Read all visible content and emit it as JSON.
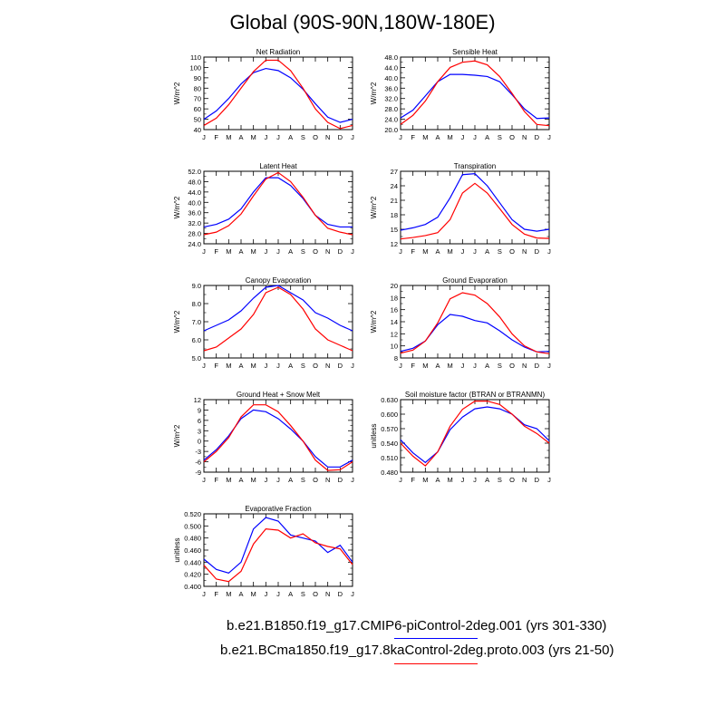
{
  "title": "Global (90S-90N,180W-180E)",
  "chart_data": [
    {
      "type": "line",
      "title": "Net Radiation",
      "ylabel": "W/m^2",
      "categories": [
        "J",
        "F",
        "M",
        "A",
        "M",
        "J",
        "J",
        "A",
        "S",
        "O",
        "N",
        "D",
        "J"
      ],
      "ylim": [
        40,
        110
      ],
      "yticks": [
        40,
        50,
        60,
        70,
        80,
        90,
        100,
        110
      ],
      "ytick_labels": [
        "40",
        "50",
        "60",
        "70",
        "80",
        "90",
        "100",
        "110"
      ],
      "series": [
        {
          "color": "#0000ff",
          "values": [
            50,
            58,
            70,
            84,
            95,
            99,
            97,
            90,
            79,
            65,
            52,
            47,
            50
          ]
        },
        {
          "color": "#ff0000",
          "values": [
            44,
            51,
            64,
            80,
            96,
            107,
            107,
            97,
            80,
            60,
            47,
            41,
            44
          ]
        }
      ]
    },
    {
      "type": "line",
      "title": "Sensible Heat",
      "ylabel": "W/m^2",
      "categories": [
        "J",
        "F",
        "M",
        "A",
        "M",
        "J",
        "J",
        "A",
        "S",
        "O",
        "N",
        "D",
        "J"
      ],
      "ylim": [
        20,
        48
      ],
      "yticks": [
        20,
        24,
        28,
        32,
        36,
        40,
        44,
        48
      ],
      "ytick_labels": [
        "20.0",
        "24.0",
        "28.0",
        "32.0",
        "36.0",
        "40.0",
        "44.0",
        "48.0"
      ],
      "series": [
        {
          "color": "#0000ff",
          "values": [
            24.5,
            27.5,
            33,
            38.5,
            41.3,
            41.3,
            41,
            40.5,
            38.5,
            33.5,
            28,
            24.3,
            24.5
          ]
        },
        {
          "color": "#ff0000",
          "values": [
            22,
            25.5,
            31,
            38.5,
            44,
            46,
            46.5,
            45,
            40.5,
            34,
            27,
            22,
            21.5
          ]
        }
      ]
    },
    {
      "type": "line",
      "title": "Latent Heat",
      "ylabel": "W/m^2",
      "categories": [
        "J",
        "F",
        "M",
        "A",
        "M",
        "J",
        "J",
        "A",
        "S",
        "O",
        "N",
        "D",
        "J"
      ],
      "ylim": [
        24,
        52
      ],
      "yticks": [
        24,
        28,
        32,
        36,
        40,
        44,
        48,
        52
      ],
      "ytick_labels": [
        "24.0",
        "28.0",
        "32.0",
        "36.0",
        "40.0",
        "44.0",
        "48.0",
        "52.0"
      ],
      "series": [
        {
          "color": "#0000ff",
          "values": [
            30.5,
            31.5,
            33.5,
            37.5,
            44,
            49.5,
            49.5,
            46.5,
            41.5,
            35,
            31.5,
            30.5,
            30.5
          ]
        },
        {
          "color": "#ff0000",
          "values": [
            27.5,
            28.5,
            31,
            35.5,
            42.5,
            49,
            51.5,
            48,
            42,
            35,
            30,
            28.5,
            27.5
          ]
        }
      ]
    },
    {
      "type": "line",
      "title": "Transpiration",
      "ylabel": "W/m^2",
      "categories": [
        "J",
        "F",
        "M",
        "A",
        "M",
        "J",
        "J",
        "A",
        "S",
        "O",
        "N",
        "D",
        "J"
      ],
      "ylim": [
        12,
        27
      ],
      "yticks": [
        12,
        15,
        18,
        21,
        24,
        27
      ],
      "ytick_labels": [
        "12",
        "15",
        "18",
        "21",
        "24",
        "27"
      ],
      "series": [
        {
          "color": "#0000ff",
          "values": [
            14.8,
            15.3,
            16,
            17.5,
            21.5,
            26.3,
            26.5,
            24,
            20.5,
            17,
            15,
            14.6,
            15
          ]
        },
        {
          "color": "#ff0000",
          "values": [
            13,
            13.3,
            13.7,
            14.3,
            17,
            22.5,
            24.5,
            22.5,
            19.3,
            16,
            14,
            13.2,
            13.1
          ]
        }
      ]
    },
    {
      "type": "line",
      "title": "Canopy Evaporation",
      "ylabel": "W/m^2",
      "categories": [
        "J",
        "F",
        "M",
        "A",
        "M",
        "J",
        "J",
        "A",
        "S",
        "O",
        "N",
        "D",
        "J"
      ],
      "ylim": [
        5,
        9
      ],
      "yticks": [
        5,
        6,
        7,
        8,
        9
      ],
      "ytick_labels": [
        "5.0",
        "6.0",
        "7.0",
        "8.0",
        "9.0"
      ],
      "series": [
        {
          "color": "#0000ff",
          "values": [
            6.5,
            6.8,
            7.1,
            7.6,
            8.3,
            8.9,
            9.0,
            8.6,
            8.2,
            7.5,
            7.2,
            6.8,
            6.5
          ]
        },
        {
          "color": "#ff0000",
          "values": [
            5.4,
            5.6,
            6.1,
            6.6,
            7.4,
            8.6,
            8.9,
            8.5,
            7.7,
            6.6,
            6.0,
            5.7,
            5.4
          ]
        }
      ]
    },
    {
      "type": "line",
      "title": "Ground Evaporation",
      "ylabel": "W/m^2",
      "categories": [
        "J",
        "F",
        "M",
        "A",
        "M",
        "J",
        "J",
        "A",
        "S",
        "O",
        "N",
        "D",
        "J"
      ],
      "ylim": [
        8,
        20
      ],
      "yticks": [
        8,
        10,
        12,
        14,
        16,
        18,
        20
      ],
      "ytick_labels": [
        "8",
        "10",
        "12",
        "14",
        "16",
        "18",
        "20"
      ],
      "series": [
        {
          "color": "#0000ff",
          "values": [
            9.1,
            9.6,
            10.8,
            13.5,
            15.2,
            14.9,
            14.2,
            13.8,
            12.5,
            11,
            9.8,
            9.0,
            9.1
          ]
        },
        {
          "color": "#ff0000",
          "values": [
            8.8,
            9.3,
            10.8,
            13.8,
            17.8,
            18.8,
            18.4,
            17.0,
            14.8,
            12,
            10,
            9.0,
            8.7
          ]
        }
      ]
    },
    {
      "type": "line",
      "title": "Ground Heat + Snow Melt",
      "ylabel": "W/m^2",
      "categories": [
        "J",
        "F",
        "M",
        "A",
        "M",
        "J",
        "J",
        "A",
        "S",
        "O",
        "N",
        "D",
        "J"
      ],
      "ylim": [
        -9,
        12
      ],
      "yticks": [
        -9,
        -6,
        -3,
        0,
        3,
        6,
        9,
        12
      ],
      "ytick_labels": [
        "-9",
        "-6",
        "-3",
        "0",
        "3",
        "6",
        "9",
        "12"
      ],
      "series": [
        {
          "color": "#0000ff",
          "values": [
            -5.5,
            -2.5,
            1.5,
            6.5,
            9,
            8.5,
            6.5,
            3.5,
            0,
            -4.5,
            -7.5,
            -7.5,
            -5.5
          ]
        },
        {
          "color": "#ff0000",
          "values": [
            -6,
            -3,
            1,
            7,
            10.5,
            10.5,
            8.5,
            4.5,
            0,
            -5.5,
            -8.5,
            -8.3,
            -6
          ]
        }
      ]
    },
    {
      "type": "line",
      "title": "Soil moisture factor (BTRAN or BTRANMN)",
      "ylabel": "unitless",
      "categories": [
        "J",
        "F",
        "M",
        "A",
        "M",
        "J",
        "J",
        "A",
        "S",
        "O",
        "N",
        "D",
        "J"
      ],
      "ylim": [
        0.48,
        0.63
      ],
      "yticks": [
        0.48,
        0.51,
        0.54,
        0.57,
        0.6,
        0.63
      ],
      "ytick_labels": [
        "0.480",
        "0.510",
        "0.540",
        "0.570",
        "0.600",
        "0.630"
      ],
      "series": [
        {
          "color": "#0000ff",
          "values": [
            0.547,
            0.52,
            0.5,
            0.522,
            0.568,
            0.594,
            0.611,
            0.615,
            0.611,
            0.6,
            0.578,
            0.57,
            0.545
          ]
        },
        {
          "color": "#ff0000",
          "values": [
            0.54,
            0.513,
            0.493,
            0.522,
            0.575,
            0.61,
            0.627,
            0.627,
            0.62,
            0.6,
            0.575,
            0.56,
            0.54
          ]
        }
      ]
    },
    {
      "type": "line",
      "title": "Evaporative Fraction",
      "ylabel": "unitless",
      "categories": [
        "J",
        "F",
        "M",
        "A",
        "M",
        "J",
        "J",
        "A",
        "S",
        "O",
        "N",
        "D",
        "J"
      ],
      "ylim": [
        0.4,
        0.52
      ],
      "yticks": [
        0.4,
        0.42,
        0.44,
        0.46,
        0.48,
        0.5,
        0.52
      ],
      "ytick_labels": [
        "0.400",
        "0.420",
        "0.440",
        "0.460",
        "0.480",
        "0.500",
        "0.520"
      ],
      "series": [
        {
          "color": "#0000ff",
          "values": [
            0.445,
            0.428,
            0.422,
            0.44,
            0.495,
            0.514,
            0.508,
            0.485,
            0.48,
            0.475,
            0.456,
            0.468,
            0.44
          ]
        },
        {
          "color": "#ff0000",
          "values": [
            0.435,
            0.412,
            0.408,
            0.425,
            0.47,
            0.495,
            0.493,
            0.48,
            0.487,
            0.472,
            0.466,
            0.462,
            0.436
          ]
        }
      ]
    }
  ],
  "legend": [
    {
      "label": "b.e21.B1850.f19_g17.CMIP6-piControl-2deg.001 (yrs 301-330)",
      "color": "#0000ff"
    },
    {
      "label": "b.e21.BCma1850.f19_g17.8kaControl-2deg.proto.003 (yrs 21-50)",
      "color": "#ff0000"
    }
  ]
}
